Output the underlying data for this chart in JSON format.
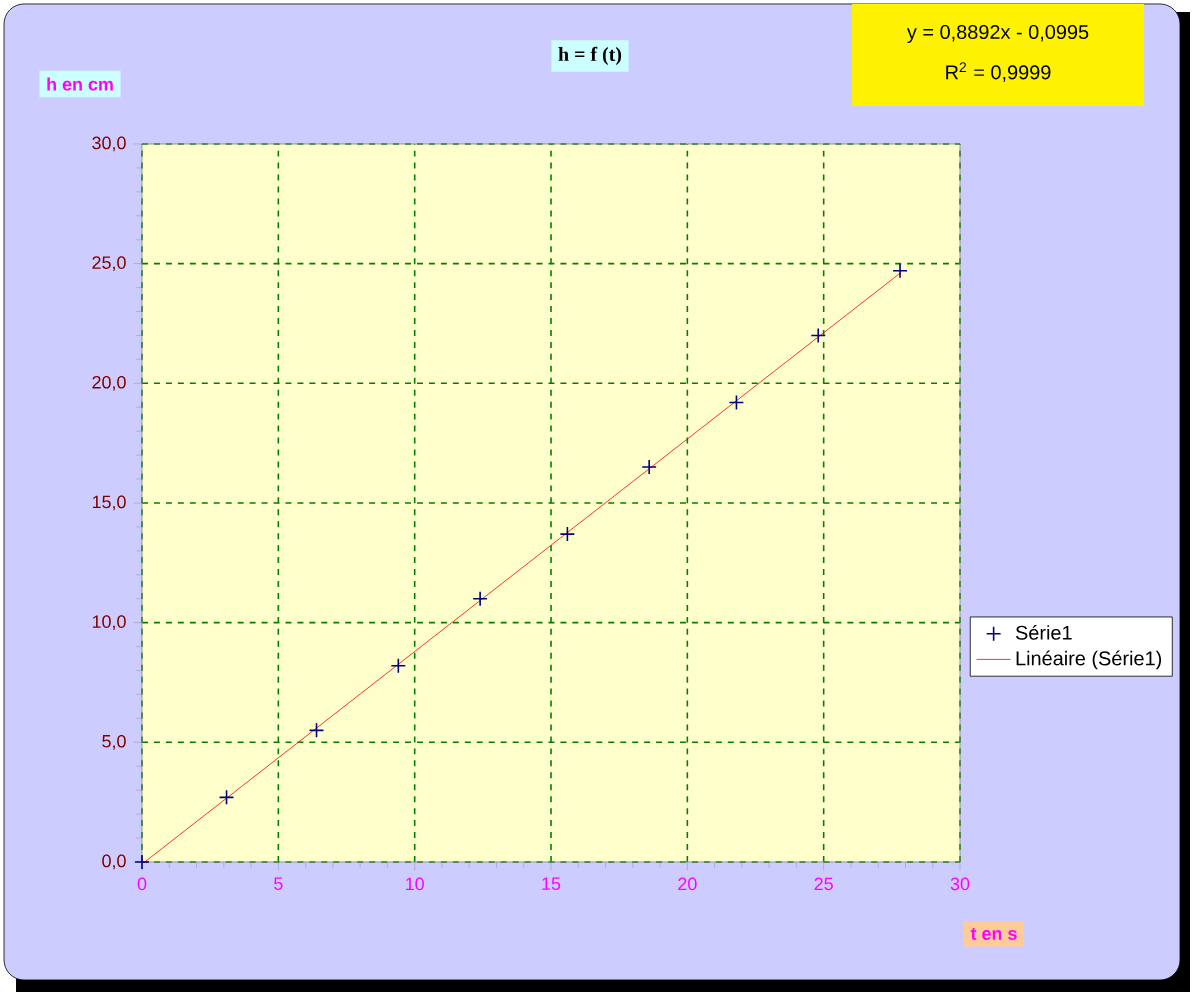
{
  "chart_data": {
    "type": "scatter",
    "title": "h = f (t)",
    "xlabel": "t en s",
    "ylabel": "h en cm",
    "annotations": [
      "y = 0,8892x - 0,0995",
      "R$^{2}$ = 0,9999"
    ],
    "xlim": [
      0,
      30
    ],
    "ylim": [
      0,
      30
    ],
    "xticks": [
      0,
      5,
      10,
      15,
      20,
      25,
      30
    ],
    "yticks": [
      {
        "value": 0,
        "label": "0,0"
      },
      {
        "value": 5,
        "label": "5,0"
      },
      {
        "value": 10,
        "label": "10,0"
      },
      {
        "value": 15,
        "label": "15,0"
      },
      {
        "value": 20,
        "label": "20,0"
      },
      {
        "value": 25,
        "label": "25,0"
      },
      {
        "value": 30,
        "label": "30,0"
      }
    ],
    "grid": true,
    "legend": "right",
    "series": [
      {
        "name": "Série1",
        "color": "#000080",
        "marker": "cross",
        "x": [
          0,
          3.1,
          6.4,
          9.4,
          12.4,
          15.6,
          18.6,
          21.8,
          24.8,
          27.8
        ],
        "values": [
          0,
          2.7,
          5.5,
          8.2,
          11.0,
          13.7,
          16.5,
          19.2,
          22.0,
          24.7
        ]
      },
      {
        "name": "Linéaire (Série1)",
        "type": "line",
        "color": "#ff0000",
        "x": [
          0.1,
          27.8
        ],
        "values": [
          0,
          24.6
        ]
      }
    ]
  }
}
